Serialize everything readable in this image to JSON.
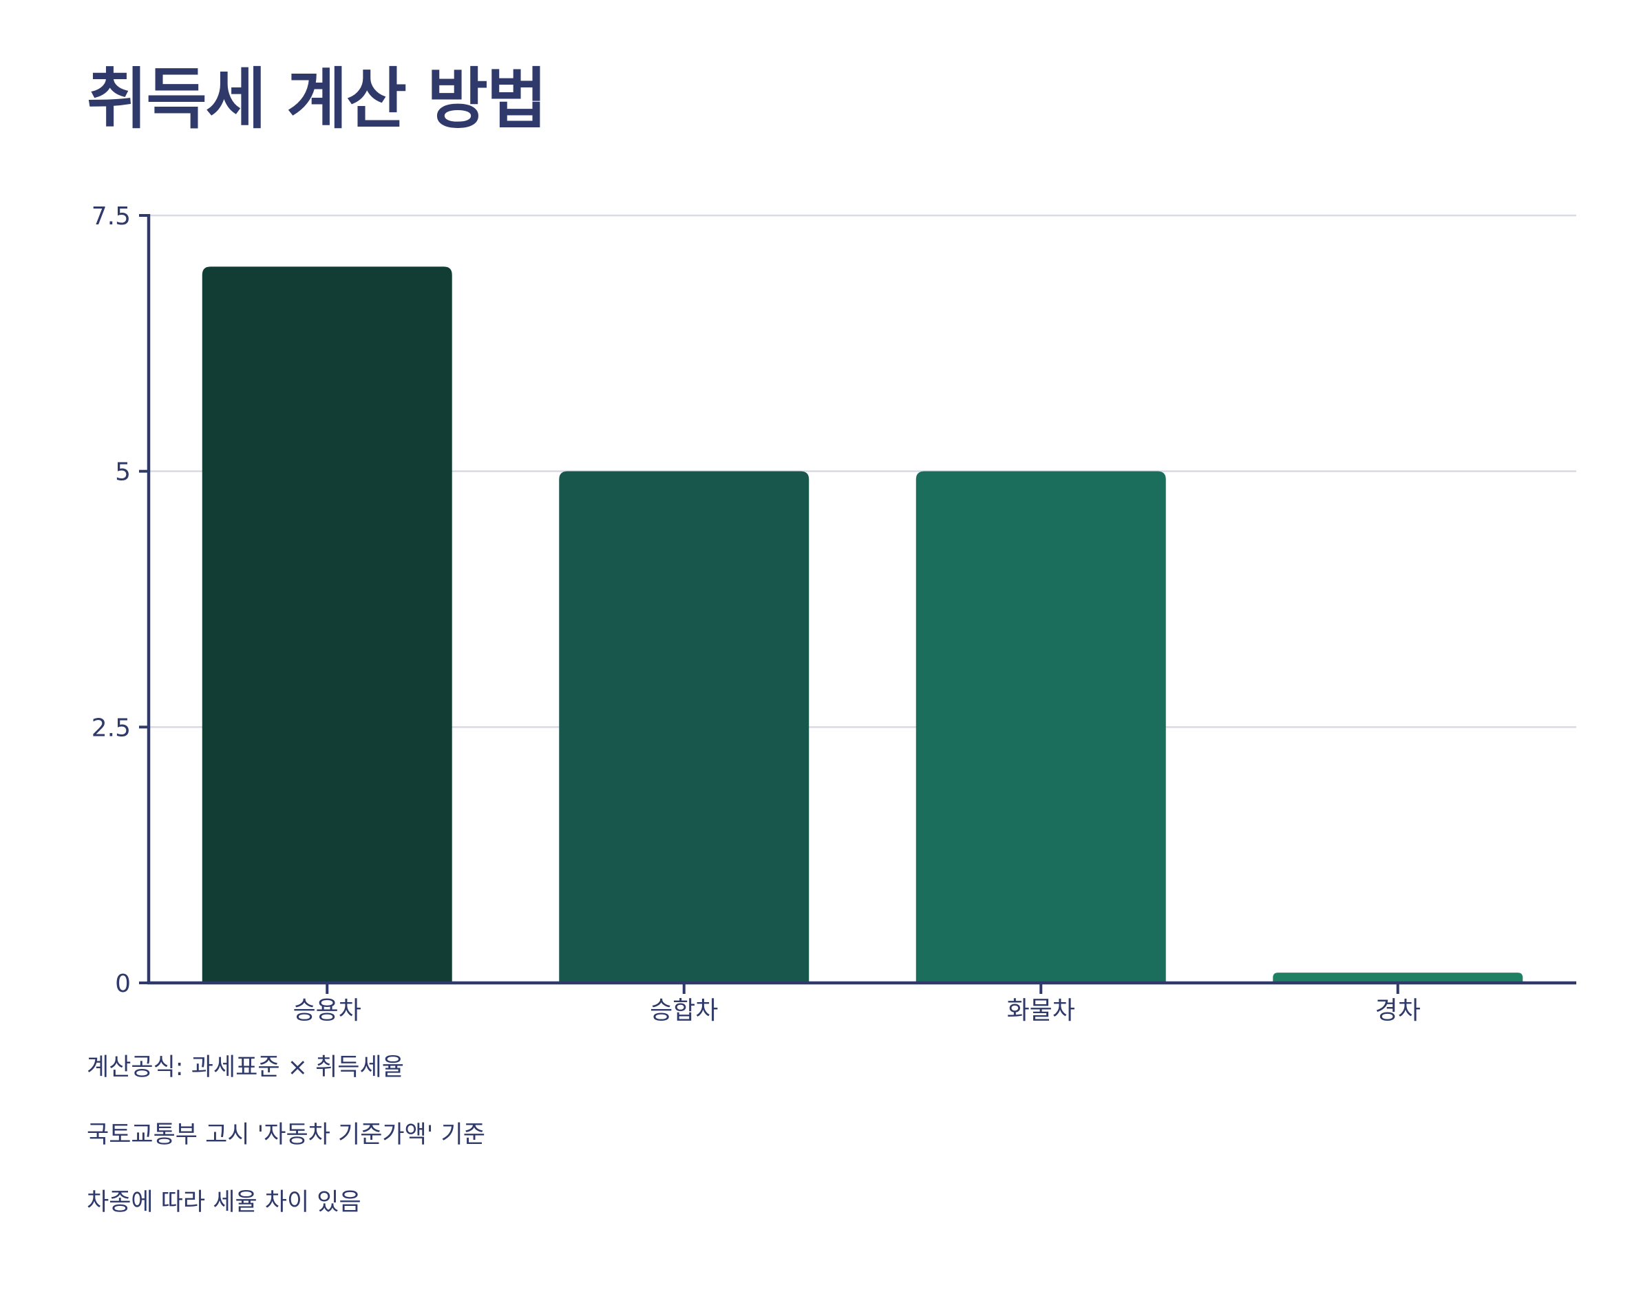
{
  "colors": {
    "text": "#2f3a6b",
    "axis": "#2f3a6b",
    "grid": "#d8dae6",
    "bars": [
      "#113d35",
      "#18574c",
      "#1c6e5c",
      "#208064"
    ]
  },
  "chart_data": {
    "type": "bar",
    "title": "취득세 계산 방법",
    "categories": [
      "승용차",
      "승합차",
      "화물차",
      "경차"
    ],
    "values": [
      7,
      5,
      5,
      0.1
    ],
    "yticks": [
      0,
      2.5,
      5,
      7.5
    ],
    "ytick_labels": [
      "0",
      "2.5",
      "5",
      "7.5"
    ],
    "ylim": [
      0,
      7.5
    ],
    "xlabel": "",
    "ylabel": "",
    "grid": true,
    "legend": "none"
  },
  "notes": [
    "계산공식: 과세표준 × 취득세율",
    "국토교통부 고시 '자동차 기준가액' 기준",
    "차종에 따라 세율 차이 있음"
  ]
}
